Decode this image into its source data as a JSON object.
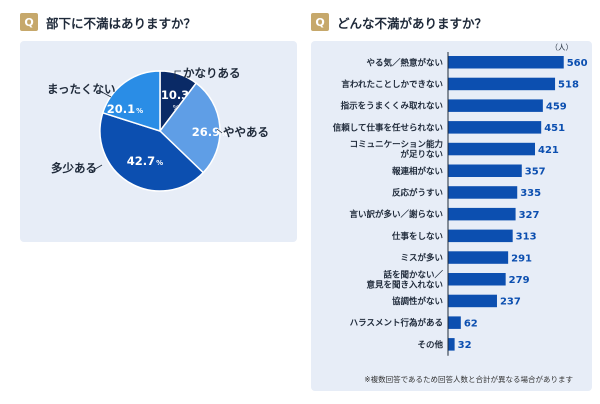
{
  "left": {
    "badge": "Q",
    "question": "部下に不満はありますか？"
  },
  "right": {
    "badge": "Q",
    "question": "どんな不満がありますか？",
    "unit": "（人）",
    "note": "※複数回答であるため回答人数と合計が異なる場合があります"
  },
  "chart_data": [
    {
      "type": "pie",
      "title": "部下に不満はありますか？",
      "slices": [
        {
          "label": "かなりある",
          "value": 10.3,
          "value_text": "10.3",
          "pct": "%",
          "color": "#0a2a66"
        },
        {
          "label": "ややある",
          "value": 26.9,
          "value_text": "26.9",
          "pct": "%",
          "color": "#5f9ee6"
        },
        {
          "label": "多少ある",
          "value": 42.7,
          "value_text": "42.7",
          "pct": "%",
          "color": "#0c4fb0"
        },
        {
          "label": "まったくない",
          "value": 20.1,
          "value_text": "20.1",
          "pct": "%",
          "color": "#2a8de6"
        }
      ]
    },
    {
      "type": "bar",
      "orientation": "horizontal",
      "title": "どんな不満がありますか？",
      "unit": "（人）",
      "bar_color": "#0c4fb0",
      "categories": [
        "やる気／熱意がない",
        "言われたことしかできない",
        "指示をうまくくみ取れない",
        "信頼して仕事を任せられない",
        "コミュニケーション能力\nが足りない",
        "報連相がない",
        "反応がうすい",
        "言い訳が多い／謝らない",
        "仕事をしない",
        "ミスが多い",
        "話を聞かない／\n意見を聞き入れない",
        "協調性がない",
        "ハラスメント行為がある",
        "その他"
      ],
      "values": [
        560,
        518,
        459,
        451,
        421,
        357,
        335,
        327,
        313,
        291,
        279,
        237,
        62,
        32
      ],
      "xlim": [
        0,
        600
      ]
    }
  ]
}
